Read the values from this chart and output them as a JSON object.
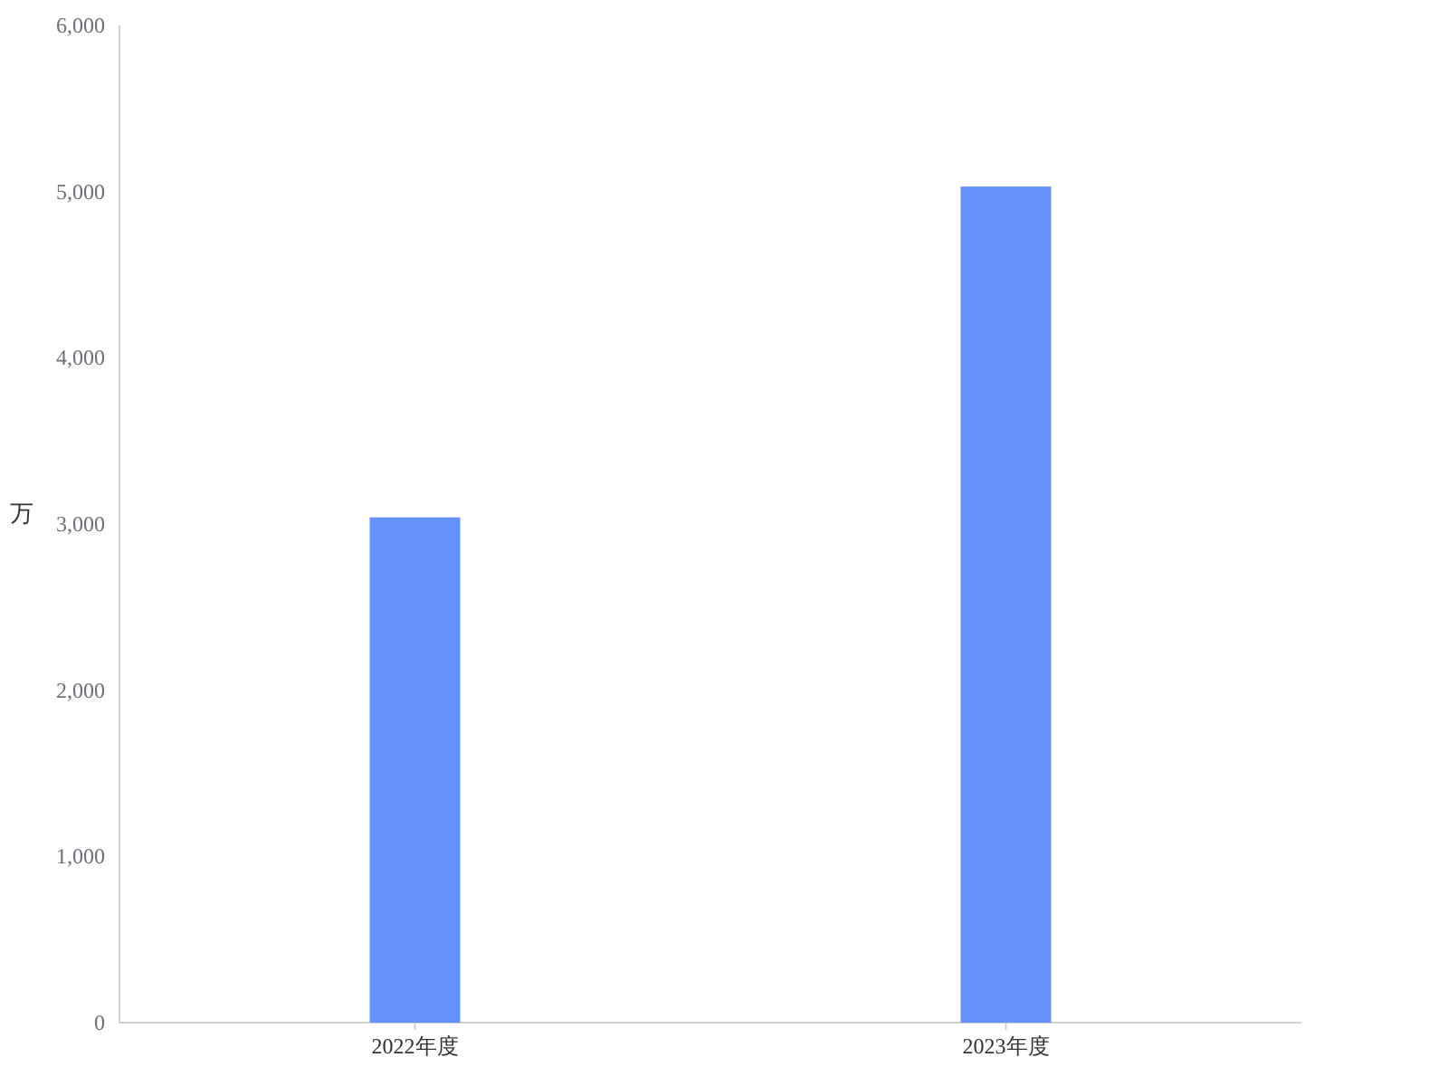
{
  "chart_data": {
    "type": "bar",
    "categories": [
      "2022年度",
      "2023年度"
    ],
    "values": [
      3040,
      5030
    ],
    "color": "#6591fc",
    "ylabel": "万",
    "ylim": [
      0,
      6000
    ],
    "yticks": [
      {
        "value": 0,
        "label": "0"
      },
      {
        "value": 1000,
        "label": "1,000"
      },
      {
        "value": 2000,
        "label": "2,000"
      },
      {
        "value": 3000,
        "label": "3,000"
      },
      {
        "value": 4000,
        "label": "4,000"
      },
      {
        "value": 5000,
        "label": "5,000"
      },
      {
        "value": 6000,
        "label": "6,000"
      }
    ],
    "grid": false
  }
}
